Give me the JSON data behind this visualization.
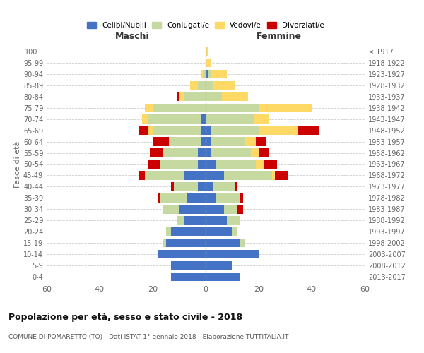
{
  "age_groups": [
    "0-4",
    "5-9",
    "10-14",
    "15-19",
    "20-24",
    "25-29",
    "30-34",
    "35-39",
    "40-44",
    "45-49",
    "50-54",
    "55-59",
    "60-64",
    "65-69",
    "70-74",
    "75-79",
    "80-84",
    "85-89",
    "90-94",
    "95-99",
    "100+"
  ],
  "birth_years": [
    "2013-2017",
    "2008-2012",
    "2003-2007",
    "1998-2002",
    "1993-1997",
    "1988-1992",
    "1983-1987",
    "1978-1982",
    "1973-1977",
    "1968-1972",
    "1963-1967",
    "1958-1962",
    "1953-1957",
    "1948-1952",
    "1943-1947",
    "1938-1942",
    "1933-1937",
    "1928-1932",
    "1923-1927",
    "1918-1922",
    "≤ 1917"
  ],
  "colors": {
    "celibi": "#4472C4",
    "coniugati": "#C5D9A0",
    "vedovi": "#FFD966",
    "divorziati": "#CC0000"
  },
  "maschi": {
    "celibi": [
      13,
      13,
      18,
      15,
      13,
      8,
      10,
      7,
      3,
      8,
      3,
      3,
      2,
      2,
      2,
      0,
      0,
      0,
      0,
      0,
      0
    ],
    "coniugati": [
      0,
      0,
      0,
      1,
      2,
      3,
      6,
      10,
      9,
      15,
      14,
      13,
      12,
      18,
      20,
      20,
      8,
      3,
      1,
      0,
      0
    ],
    "vedovi": [
      0,
      0,
      0,
      0,
      0,
      0,
      0,
      0,
      0,
      0,
      0,
      0,
      0,
      2,
      2,
      3,
      2,
      3,
      1,
      0,
      0
    ],
    "divorziati": [
      0,
      0,
      0,
      0,
      0,
      0,
      0,
      1,
      1,
      2,
      5,
      5,
      6,
      3,
      0,
      0,
      1,
      0,
      0,
      0,
      0
    ]
  },
  "femmine": {
    "celibi": [
      13,
      10,
      20,
      13,
      10,
      8,
      7,
      4,
      3,
      7,
      4,
      2,
      2,
      2,
      0,
      0,
      0,
      0,
      1,
      0,
      0
    ],
    "coniugati": [
      0,
      0,
      0,
      2,
      2,
      5,
      5,
      9,
      8,
      18,
      15,
      15,
      13,
      18,
      18,
      20,
      6,
      3,
      1,
      0,
      0
    ],
    "vedovi": [
      0,
      0,
      0,
      0,
      0,
      0,
      0,
      0,
      0,
      1,
      3,
      3,
      4,
      15,
      6,
      20,
      10,
      8,
      6,
      2,
      1
    ],
    "divorziati": [
      0,
      0,
      0,
      0,
      0,
      0,
      2,
      1,
      1,
      5,
      5,
      4,
      4,
      8,
      0,
      0,
      0,
      0,
      0,
      0,
      0
    ]
  },
  "xlim": 60,
  "title": "Popolazione per età, sesso e stato civile - 2018",
  "subtitle": "COMUNE DI POMARETTO (TO) - Dati ISTAT 1° gennaio 2018 - Elaborazione TUTTITALIA.IT",
  "ylabel_left": "Fasce di età",
  "xlabel_left": "Maschi",
  "xlabel_right": "Femmine"
}
